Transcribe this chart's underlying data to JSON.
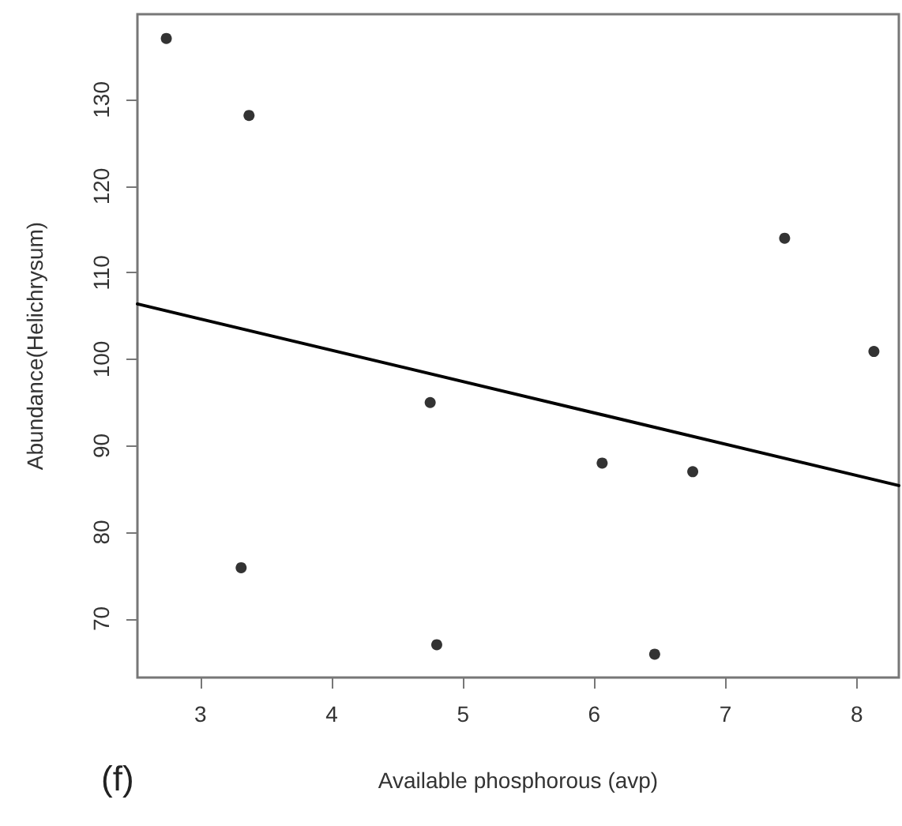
{
  "chart_data": {
    "type": "scatter",
    "xlabel": "Available phosphorous (avp)",
    "ylabel": "Abundance(Helichrysum)",
    "annotations": [
      "(f)"
    ],
    "xlim": [
      2.52,
      8.32
    ],
    "xticks": [
      3,
      4,
      5,
      6,
      7,
      8
    ],
    "ylim": [
      63.2,
      139.9
    ],
    "yticks": [
      70,
      80,
      90,
      100,
      110,
      120,
      130
    ],
    "grid": false,
    "marker": "circle",
    "series": [
      {
        "color": "#000000",
        "x": [
          2.74,
          3.37,
          3.31,
          4.75,
          4.8,
          6.06,
          6.75,
          6.46,
          7.45,
          8.13
        ],
        "values": [
          137.1,
          128.2,
          75.9,
          95.0,
          67.0,
          88.0,
          87.0,
          65.9,
          114.0,
          100.9
        ]
      },
      {
        "type": "line",
        "color": "#000000",
        "x": [
          2.52,
          8.32
        ],
        "values": [
          106.4,
          85.4
        ],
        "marker": "none",
        "line_style": "solid"
      }
    ]
  }
}
